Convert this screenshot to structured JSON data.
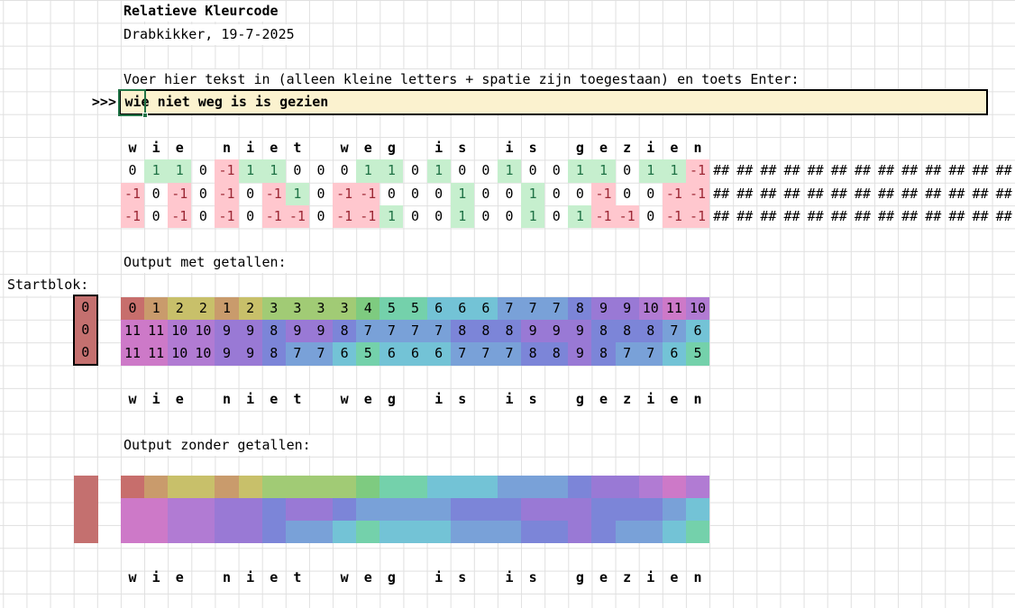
{
  "header": {
    "title": "Relatieve Kleurcode",
    "subtitle": "Drabkikker, 19-7-2025"
  },
  "input_section": {
    "instruction": "Voer hier tekst in (alleen kleine letters + spatie zijn toegestaan) en toets Enter:",
    "prompt": ">>>",
    "value": "wie niet weg is is gezien"
  },
  "code_table": {
    "letters": [
      "w",
      "i",
      "e",
      "",
      "n",
      "i",
      "e",
      "t",
      "",
      "w",
      "e",
      "g",
      "",
      "i",
      "s",
      "",
      "i",
      "s",
      "",
      "g",
      "e",
      "z",
      "i",
      "e",
      "n"
    ],
    "delta_rows": [
      [
        0,
        1,
        1,
        0,
        -1,
        1,
        1,
        0,
        0,
        0,
        1,
        1,
        0,
        1,
        0,
        0,
        1,
        0,
        0,
        1,
        1,
        0,
        1,
        1,
        -1
      ],
      [
        -1,
        0,
        -1,
        0,
        -1,
        0,
        -1,
        1,
        0,
        -1,
        -1,
        0,
        0,
        0,
        1,
        0,
        0,
        1,
        0,
        0,
        -1,
        0,
        0,
        -1,
        -1
      ],
      [
        -1,
        0,
        -1,
        0,
        -1,
        0,
        -1,
        -1,
        0,
        -1,
        -1,
        1,
        0,
        0,
        1,
        0,
        0,
        1,
        0,
        1,
        -1,
        -1,
        0,
        -1,
        -1
      ]
    ],
    "overflow_text": "##",
    "overflow_columns": 13
  },
  "startblock": {
    "label": "Startblok:",
    "values": [
      "0",
      "0",
      "0"
    ],
    "color": "#c4706f"
  },
  "output_numbers": {
    "label": "Output met getallen:",
    "rows": [
      [
        0,
        1,
        2,
        2,
        1,
        2,
        3,
        3,
        3,
        3,
        4,
        5,
        5,
        6,
        6,
        6,
        7,
        7,
        7,
        8,
        9,
        9,
        10,
        11,
        10
      ],
      [
        11,
        11,
        10,
        10,
        9,
        9,
        8,
        9,
        9,
        8,
        7,
        7,
        7,
        7,
        8,
        8,
        8,
        9,
        9,
        9,
        8,
        8,
        8,
        7,
        6
      ],
      [
        11,
        11,
        10,
        10,
        9,
        9,
        8,
        7,
        7,
        6,
        5,
        6,
        6,
        6,
        7,
        7,
        7,
        8,
        8,
        9,
        8,
        7,
        7,
        6,
        5
      ]
    ]
  },
  "output_colors": {
    "label": "Output zonder getallen:"
  },
  "colors": {
    "palette": [
      "#c76e6c",
      "#c99b6c",
      "#c8c06a",
      "#a1cb75",
      "#7ecb80",
      "#74d1ab",
      "#73c3d6",
      "#79a1d8",
      "#7c85d8",
      "#9979d5",
      "#b17bd3",
      "#cd79c8"
    ],
    "positive_bg": "#c6efce",
    "positive_text": "#1f7245",
    "negative_bg": "#ffc7ce",
    "negative_text": "#9c2734",
    "input_bg": "#fbf2cf",
    "selection_green": "#217346",
    "gridline": "#e0e0e0"
  }
}
